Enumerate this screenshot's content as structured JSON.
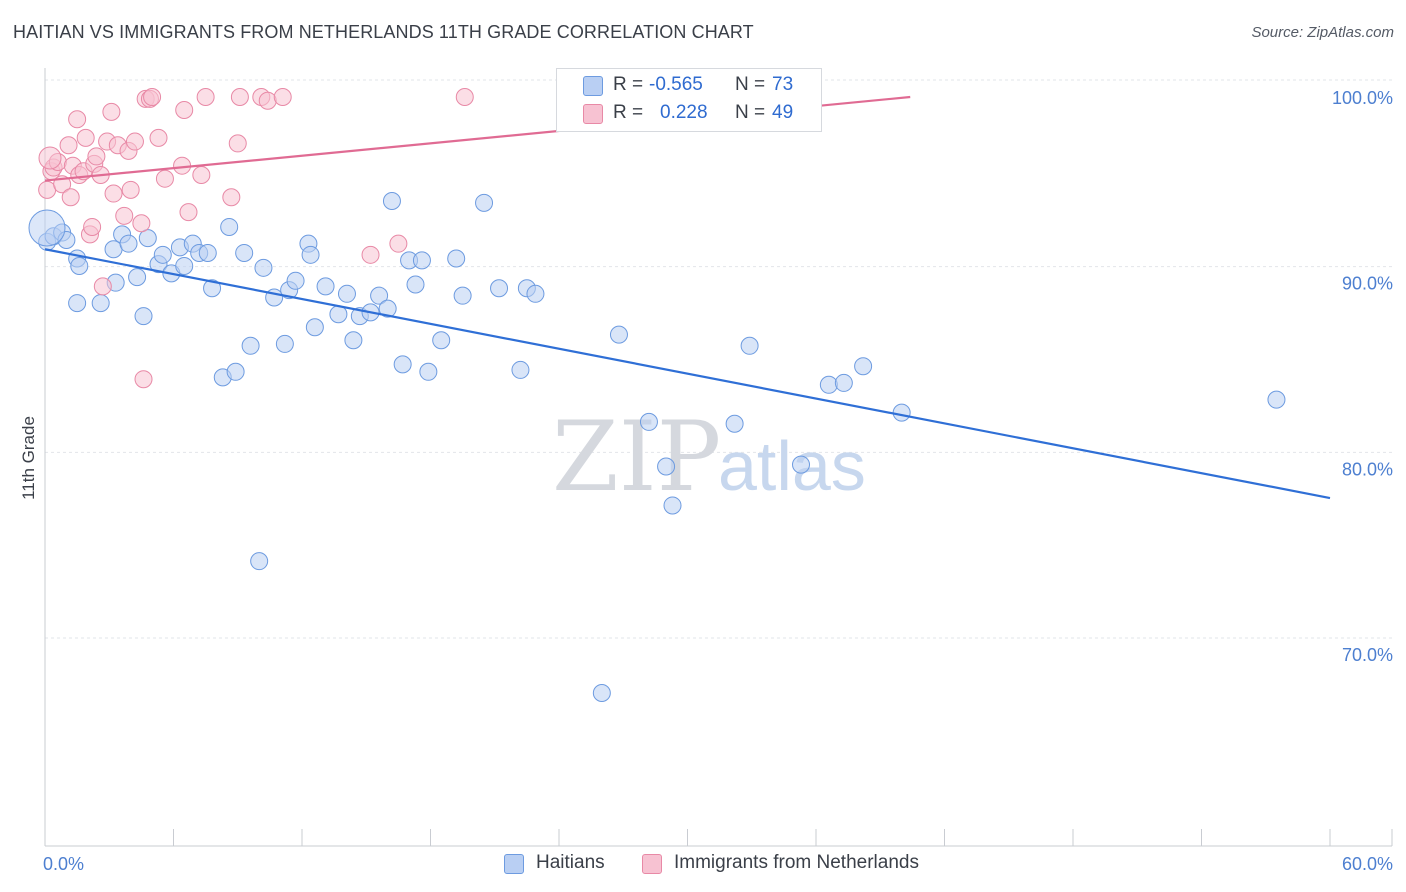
{
  "header": {
    "title": "HAITIAN VS IMMIGRANTS FROM NETHERLANDS 11TH GRADE CORRELATION CHART",
    "source": "Source: ZipAtlas.com"
  },
  "watermark": {
    "zip": "ZIP",
    "atlas": "atlas"
  },
  "legend": {
    "r_label": "R =",
    "n_label": "N =",
    "series": [
      {
        "name": "Haitians",
        "r": "-0.565",
        "n": "73",
        "color": "#6d9be0",
        "fill": "#b9cff3"
      },
      {
        "name": "Immigrants from Netherlands",
        "r": "0.228",
        "n": "49",
        "color": "#e889a6",
        "fill": "#f7c2d2"
      }
    ]
  },
  "chart_data": {
    "type": "scatter",
    "title": "HAITIAN VS IMMIGRANTS FROM NETHERLANDS 11TH GRADE CORRELATION CHART",
    "xlabel": "",
    "ylabel": "11th Grade",
    "xlim": [
      0,
      60
    ],
    "ylim": [
      60.5,
      101.2
    ],
    "x_tick_labels": [
      {
        "value": 0,
        "label": "0.0%"
      },
      {
        "value": 60,
        "label": "60.0%"
      }
    ],
    "y_tick_labels": [
      {
        "value": 100,
        "label": "100.0%"
      },
      {
        "value": 90,
        "label": "90.0%"
      },
      {
        "value": 80,
        "label": "80.0%"
      },
      {
        "value": 70,
        "label": "70.0%"
      }
    ],
    "series": [
      {
        "name": "Haitians",
        "color": "#6d9be0",
        "points": [
          [
            0.1,
            92.2
          ],
          [
            0.4,
            92.5
          ],
          [
            0.8,
            92.7
          ],
          [
            1.0,
            92.3
          ],
          [
            1.5,
            91.3
          ],
          [
            1.6,
            90.9
          ],
          [
            1.5,
            88.9
          ],
          [
            2.6,
            88.9
          ],
          [
            3.2,
            91.8
          ],
          [
            3.3,
            90.0
          ],
          [
            3.6,
            92.6
          ],
          [
            3.9,
            92.1
          ],
          [
            4.3,
            90.3
          ],
          [
            4.6,
            88.2
          ],
          [
            4.8,
            92.4
          ],
          [
            5.3,
            91.0
          ],
          [
            5.5,
            91.5
          ],
          [
            5.9,
            90.5
          ],
          [
            6.3,
            91.9
          ],
          [
            6.5,
            90.9
          ],
          [
            6.9,
            92.1
          ],
          [
            7.2,
            91.6
          ],
          [
            7.6,
            91.6
          ],
          [
            7.8,
            89.7
          ],
          [
            8.3,
            84.9
          ],
          [
            8.6,
            93.0
          ],
          [
            8.9,
            85.2
          ],
          [
            9.3,
            91.6
          ],
          [
            9.6,
            86.6
          ],
          [
            10.0,
            75.0
          ],
          [
            10.2,
            90.8
          ],
          [
            10.7,
            89.2
          ],
          [
            11.2,
            86.7
          ],
          [
            11.4,
            89.6
          ],
          [
            11.7,
            90.1
          ],
          [
            12.3,
            92.1
          ],
          [
            12.4,
            91.5
          ],
          [
            12.6,
            87.6
          ],
          [
            13.1,
            89.8
          ],
          [
            13.7,
            88.3
          ],
          [
            14.1,
            89.4
          ],
          [
            14.4,
            86.9
          ],
          [
            14.7,
            88.2
          ],
          [
            15.2,
            88.4
          ],
          [
            15.6,
            89.3
          ],
          [
            16.0,
            88.6
          ],
          [
            16.2,
            94.4
          ],
          [
            16.7,
            85.6
          ],
          [
            17.0,
            91.2
          ],
          [
            17.3,
            89.9
          ],
          [
            17.6,
            91.2
          ],
          [
            17.9,
            85.2
          ],
          [
            18.5,
            86.9
          ],
          [
            19.2,
            91.3
          ],
          [
            19.5,
            89.3
          ],
          [
            20.5,
            94.3
          ],
          [
            21.2,
            89.7
          ],
          [
            22.2,
            85.3
          ],
          [
            22.5,
            89.7
          ],
          [
            22.9,
            89.4
          ],
          [
            26.0,
            67.9
          ],
          [
            26.8,
            87.2
          ],
          [
            28.2,
            82.5
          ],
          [
            29.0,
            80.1
          ],
          [
            29.3,
            78.0
          ],
          [
            32.2,
            82.4
          ],
          [
            32.9,
            86.6
          ],
          [
            35.3,
            80.2
          ],
          [
            36.6,
            84.5
          ],
          [
            37.3,
            84.6
          ],
          [
            38.2,
            85.5
          ],
          [
            40.0,
            83.0
          ],
          [
            57.5,
            83.7
          ]
        ],
        "trend_x": [
          0,
          60
        ],
        "trend_y": [
          91.8,
          78.4
        ]
      },
      {
        "name": "Immigrants from Netherlands",
        "color": "#e889a6",
        "points": [
          [
            0.1,
            95.0
          ],
          [
            0.3,
            96.0
          ],
          [
            0.4,
            96.2
          ],
          [
            0.6,
            96.5
          ],
          [
            0.8,
            95.3
          ],
          [
            1.1,
            97.4
          ],
          [
            1.2,
            94.6
          ],
          [
            1.3,
            96.3
          ],
          [
            1.5,
            98.8
          ],
          [
            1.6,
            95.8
          ],
          [
            1.8,
            96.0
          ],
          [
            1.9,
            97.8
          ],
          [
            2.1,
            92.6
          ],
          [
            2.2,
            93.0
          ],
          [
            2.3,
            96.4
          ],
          [
            2.4,
            96.8
          ],
          [
            2.6,
            95.8
          ],
          [
            2.7,
            89.8
          ],
          [
            2.9,
            97.6
          ],
          [
            3.1,
            99.2
          ],
          [
            3.2,
            94.8
          ],
          [
            3.4,
            97.4
          ],
          [
            3.7,
            93.6
          ],
          [
            3.9,
            97.1
          ],
          [
            4.0,
            95.0
          ],
          [
            4.2,
            97.6
          ],
          [
            4.5,
            93.2
          ],
          [
            4.6,
            84.8
          ],
          [
            4.7,
            99.9
          ],
          [
            4.9,
            99.9
          ],
          [
            5.0,
            100.0
          ],
          [
            5.3,
            97.8
          ],
          [
            5.6,
            95.6
          ],
          [
            6.4,
            96.3
          ],
          [
            6.5,
            99.3
          ],
          [
            6.7,
            93.8
          ],
          [
            7.3,
            95.8
          ],
          [
            7.5,
            100.0
          ],
          [
            8.7,
            94.6
          ],
          [
            9.0,
            97.5
          ],
          [
            9.1,
            100.0
          ],
          [
            10.1,
            100.0
          ],
          [
            10.4,
            99.8
          ],
          [
            11.1,
            100.0
          ],
          [
            15.2,
            91.5
          ],
          [
            16.5,
            92.1
          ],
          [
            19.6,
            100.0
          ],
          [
            24.3,
            100.0
          ],
          [
            33.8,
            100.0
          ]
        ],
        "trend_x": [
          0,
          40.4
        ],
        "trend_y": [
          95.5,
          100.0
        ]
      }
    ]
  }
}
